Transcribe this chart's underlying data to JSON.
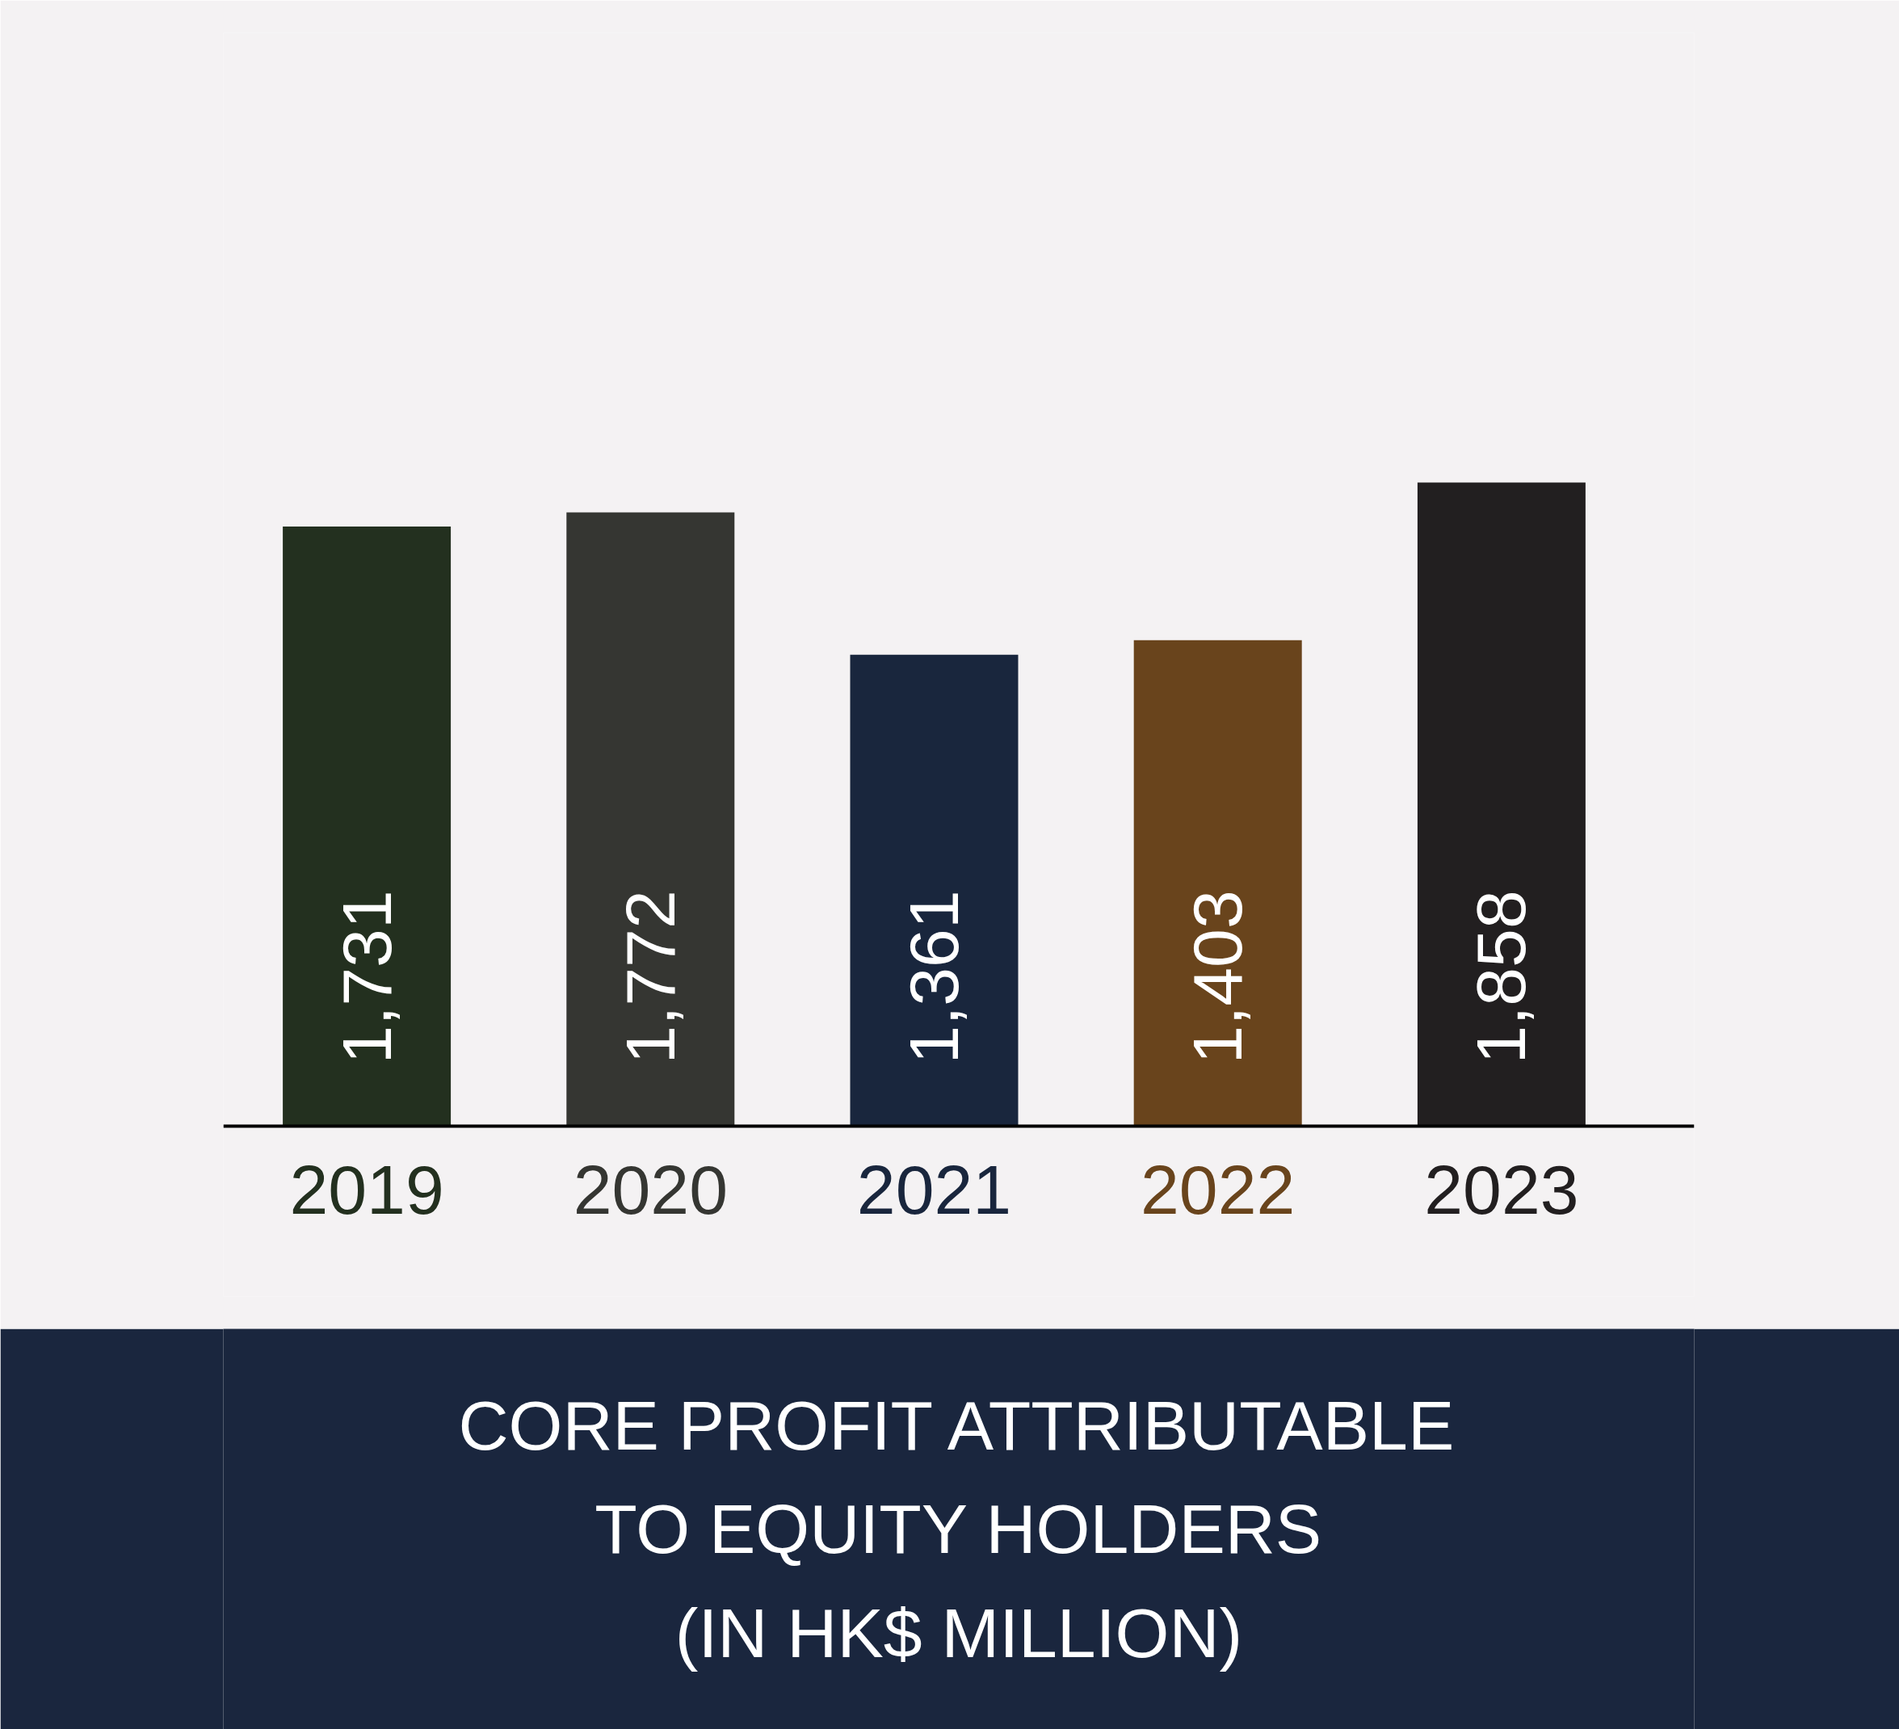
{
  "chart_data": {
    "type": "bar",
    "title": "CORE PROFIT ATTRIBUTABLE\nTO EQUITY HOLDERS\n(IN HK$ MILLION)",
    "categories": [
      "2019",
      "2020",
      "2021",
      "2022",
      "2023"
    ],
    "values": [
      1731,
      1772,
      1361,
      1403,
      1858
    ],
    "value_labels": [
      "1,731",
      "1,772",
      "1,361",
      "1,403",
      "1,858"
    ],
    "colors": [
      "#23301f",
      "#353632",
      "#19263d",
      "#69441c",
      "#221f20"
    ],
    "tick_labels": "x",
    "grid": false
  }
}
